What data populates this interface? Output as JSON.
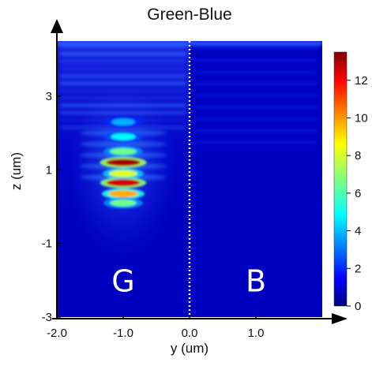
{
  "chart_data": {
    "type": "heatmap",
    "title": "Green-Blue",
    "xlabel": "y (um)",
    "ylabel": "z (um)",
    "xlim": [
      -2.0,
      2.0
    ],
    "ylim": [
      -3,
      4.5
    ],
    "x_ticks": [
      -2.0,
      -1.0,
      0.0,
      1.0
    ],
    "x_tick_labels": [
      "-2.0",
      "-1.0",
      "0.0",
      "1.0"
    ],
    "y_ticks": [
      -3,
      -1,
      1,
      3
    ],
    "y_tick_labels": [
      "-3",
      "-1",
      "1",
      "3"
    ],
    "colorbar": {
      "min": 0,
      "max": 13.5,
      "ticks": [
        0,
        2,
        4,
        6,
        8,
        10,
        12
      ],
      "tick_labels": [
        "0",
        "2",
        "4",
        "6",
        "8",
        "10",
        "12"
      ],
      "colormap": "jet"
    },
    "divider": {
      "x": 0.0,
      "style": "dotted"
    },
    "region_labels": [
      {
        "text": "G",
        "x": -1.0,
        "y": -2.0
      },
      {
        "text": "B",
        "x": 1.0,
        "y": -2.0
      }
    ],
    "hotspots": [
      {
        "y": -1.0,
        "z": 1.2,
        "value": 13
      },
      {
        "y": -1.0,
        "z": 0.65,
        "value": 12.5
      },
      {
        "y": -1.0,
        "z": 0.35,
        "value": 9.5
      },
      {
        "y": -1.0,
        "z": 0.9,
        "value": 8
      },
      {
        "y": -1.0,
        "z": 0.1,
        "value": 6.5
      },
      {
        "y": -1.0,
        "z": 1.5,
        "value": 6.5
      },
      {
        "y": -1.0,
        "z": 1.9,
        "value": 5
      },
      {
        "y": -1.0,
        "z": 2.3,
        "value": 4
      }
    ]
  }
}
